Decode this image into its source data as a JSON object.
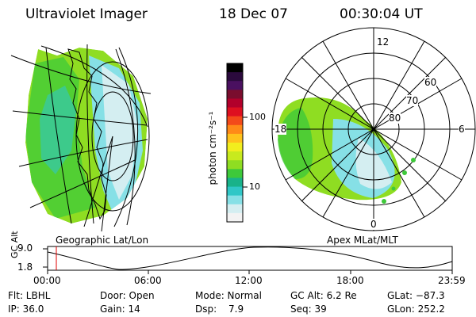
{
  "header": {
    "title": "Ultraviolet Imager",
    "date": "18 Dec 07",
    "time": "00:30:04 UT"
  },
  "colorbar": {
    "label": "photon cm⁻²s⁻¹",
    "ticks": [
      "100",
      "10"
    ],
    "colors": [
      "#000000",
      "#2b0a3d",
      "#4a1060",
      "#7a0d2e",
      "#b2002b",
      "#de1020",
      "#f34a1a",
      "#ff8a18",
      "#ffc21c",
      "#f2ee1e",
      "#c8ea1e",
      "#8fdd22",
      "#3ec93a",
      "#19b28a",
      "#30c7c7",
      "#86e0e6",
      "#d4eef1",
      "#f3f3f3"
    ]
  },
  "geo_panel": {
    "label": "Geographic Lat/Lon"
  },
  "polar_panel": {
    "label": "Apex MLat/MLT",
    "mlt_labels": [
      "12",
      "18",
      "6",
      "0"
    ],
    "lat_labels": [
      "60",
      "70",
      "80"
    ]
  },
  "alt_strip": {
    "ylabel": "GC Alt",
    "yticks": [
      "9.0",
      "1.8"
    ],
    "xticks": [
      "00:00",
      "06:00",
      "12:00",
      "18:00",
      "23:59"
    ],
    "marker_color": "#e00000"
  },
  "footer": {
    "filter": "Flt: LBHL",
    "door": "Door: Open",
    "mode": "Mode: Normal",
    "gc_alt": "GC Alt: 6.2 Re",
    "glat": "GLat: −87.3",
    "ip": "IP: 36.0",
    "gain": "Gain: 14",
    "dsp_label": "Dsp:",
    "dsp_value": "7.9",
    "seq": "Seq: 39",
    "glon": "GLon: 252.2"
  }
}
